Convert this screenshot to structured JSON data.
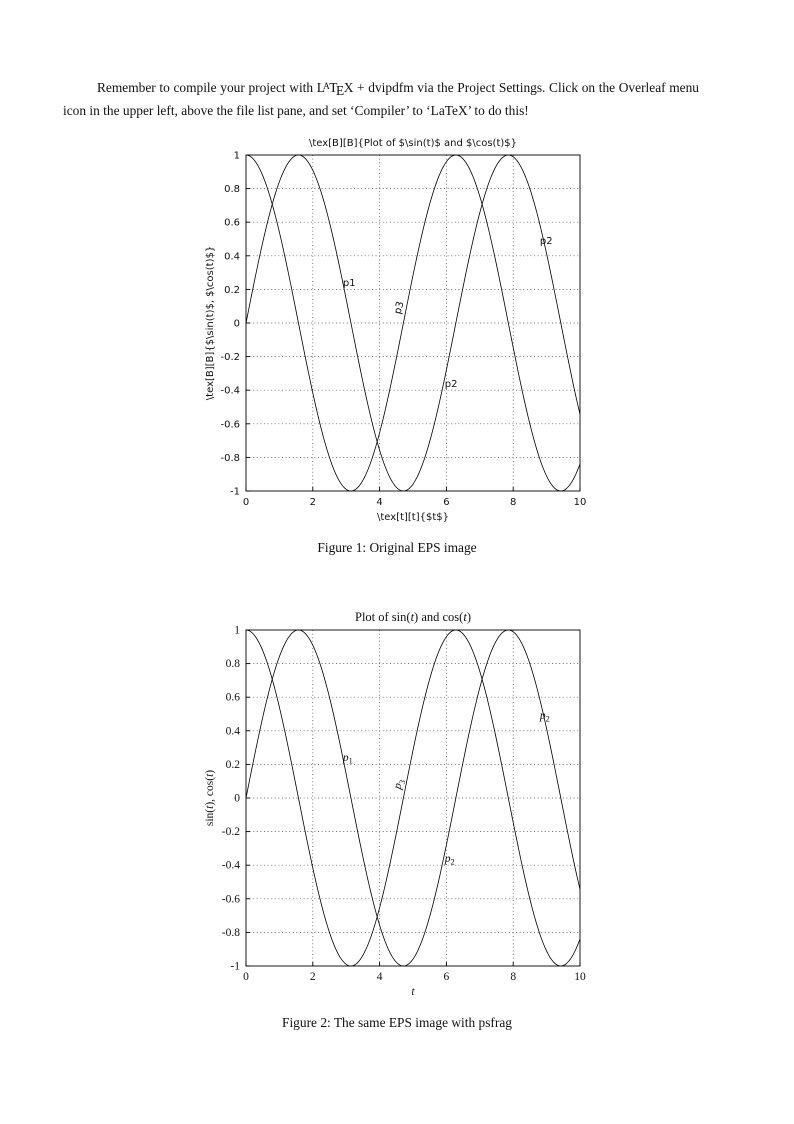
{
  "page": {
    "paragraph": {
      "part1": "Remember to compile your project with ",
      "logo": {
        "L": "L",
        "A": "A",
        "T": "T",
        "E": "E",
        "X": "X"
      },
      "part2": " + dvipdfm via the Project Settings. Click on the Overleaf menu icon in the upper left, above the file list pane, and set ‘Compiler’ to ‘LaTeX’ to do this!"
    },
    "captions": {
      "fig1": "Figure 1: Original EPS image",
      "fig2": "Figure 2: The same EPS image with psfrag"
    }
  },
  "chart_data": [
    {
      "id": "fig1",
      "type": "line",
      "font": "sans",
      "title": [
        {
          "t": "\\tex[B][B]{Plot of $\\sin(t)$ and $\\cos(t)$}"
        }
      ],
      "xlabel": [
        {
          "t": "\\tex[t][t]{$t$}"
        }
      ],
      "ylabel": [
        {
          "t": "\\tex[B][B]{$\\sin(t)$, $\\cos(t)$}"
        }
      ],
      "xlim": [
        0,
        10
      ],
      "ylim": [
        -1,
        1
      ],
      "grid": "dotted",
      "legend": "none",
      "xticks": [
        {
          "v": 0,
          "label": "0"
        },
        {
          "v": 2,
          "label": "2"
        },
        {
          "v": 4,
          "label": "4"
        },
        {
          "v": 6,
          "label": "6"
        },
        {
          "v": 8,
          "label": "8"
        },
        {
          "v": 10,
          "label": "10"
        }
      ],
      "yticks": [
        {
          "v": -1,
          "label": "-1"
        },
        {
          "v": -0.8,
          "label": "-0.8"
        },
        {
          "v": -0.6,
          "label": "-0.6"
        },
        {
          "v": -0.4,
          "label": "-0.4"
        },
        {
          "v": -0.2,
          "label": "-0.2"
        },
        {
          "v": 0,
          "label": "0"
        },
        {
          "v": 0.2,
          "label": "0.2"
        },
        {
          "v": 0.4,
          "label": "0.4"
        },
        {
          "v": 0.6,
          "label": "0.6"
        },
        {
          "v": 0.8,
          "label": "0.8"
        },
        {
          "v": 1,
          "label": "1"
        }
      ],
      "series": [
        {
          "name": "sin(t)",
          "fn": "sin",
          "range": [
            0,
            10
          ]
        },
        {
          "name": "cos(t)",
          "fn": "cos",
          "range": [
            0,
            10
          ]
        }
      ],
      "annotations": [
        {
          "x": 2.9,
          "y": 0.22,
          "rotate": 0,
          "segs": [
            {
              "t": "p1"
            }
          ]
        },
        {
          "x": 4.62,
          "y": 0.05,
          "rotate": -75,
          "segs": [
            {
              "t": "p3"
            }
          ]
        },
        {
          "x": 5.95,
          "y": -0.38,
          "rotate": 0,
          "segs": [
            {
              "t": "p2"
            }
          ]
        },
        {
          "x": 8.8,
          "y": 0.47,
          "rotate": 0,
          "segs": [
            {
              "t": "p2"
            }
          ]
        }
      ]
    },
    {
      "id": "fig2",
      "type": "line",
      "font": "serif",
      "title": [
        {
          "t": "Plot of sin("
        },
        {
          "t": "t",
          "i": true
        },
        {
          "t": ") and cos("
        },
        {
          "t": "t",
          "i": true
        },
        {
          "t": ")"
        }
      ],
      "xlabel": [
        {
          "t": "t",
          "i": true
        }
      ],
      "ylabel": [
        {
          "t": "sin("
        },
        {
          "t": "t",
          "i": true
        },
        {
          "t": "), cos("
        },
        {
          "t": "t",
          "i": true
        },
        {
          "t": ")"
        }
      ],
      "xlim": [
        0,
        10
      ],
      "ylim": [
        -1,
        1
      ],
      "grid": "dotted",
      "legend": "none",
      "xticks": [
        {
          "v": 0,
          "label": "0"
        },
        {
          "v": 2,
          "label": "2"
        },
        {
          "v": 4,
          "label": "4"
        },
        {
          "v": 6,
          "label": "6"
        },
        {
          "v": 8,
          "label": "8"
        },
        {
          "v": 10,
          "label": "10"
        }
      ],
      "yticks": [
        {
          "v": -1,
          "label": "-1"
        },
        {
          "v": -0.8,
          "label": "-0.8"
        },
        {
          "v": -0.6,
          "label": "-0.6"
        },
        {
          "v": -0.4,
          "label": "-0.4"
        },
        {
          "v": -0.2,
          "label": "-0.2"
        },
        {
          "v": 0,
          "label": "0"
        },
        {
          "v": 0.2,
          "label": "0.2"
        },
        {
          "v": 0.4,
          "label": "0.4"
        },
        {
          "v": 0.6,
          "label": "0.6"
        },
        {
          "v": 0.8,
          "label": "0.8"
        },
        {
          "v": 1,
          "label": "1"
        }
      ],
      "series": [
        {
          "name": "sin(t)",
          "fn": "sin",
          "range": [
            0,
            10
          ]
        },
        {
          "name": "cos(t)",
          "fn": "cos",
          "range": [
            0,
            10
          ]
        }
      ],
      "annotations": [
        {
          "x": 2.9,
          "y": 0.22,
          "rotate": 0,
          "segs": [
            {
              "t": "p",
              "i": true
            },
            {
              "t": "1",
              "sub": true
            }
          ]
        },
        {
          "x": 4.62,
          "y": 0.05,
          "rotate": -75,
          "segs": [
            {
              "t": "p",
              "i": true
            },
            {
              "t": "3",
              "sub": true
            }
          ]
        },
        {
          "x": 5.95,
          "y": -0.38,
          "rotate": 0,
          "segs": [
            {
              "t": "p",
              "i": true
            },
            {
              "t": "2",
              "sub": true
            }
          ]
        },
        {
          "x": 8.8,
          "y": 0.47,
          "rotate": 0,
          "segs": [
            {
              "t": "p",
              "i": true
            },
            {
              "t": "2",
              "sub": true
            }
          ]
        }
      ]
    }
  ]
}
